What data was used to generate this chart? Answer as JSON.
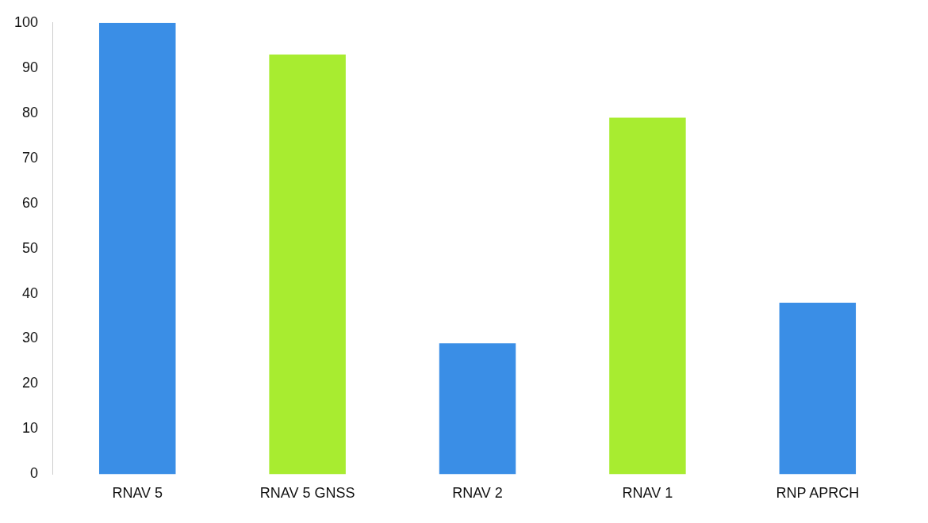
{
  "chart_data": {
    "type": "bar",
    "categories": [
      "RNAV 5",
      "RNAV 5 GNSS",
      "RNAV 2",
      "RNAV 1",
      "RNP APRCH"
    ],
    "values": [
      100,
      93,
      29,
      79,
      38
    ],
    "colors": [
      "#3a8ee6",
      "#a8ec30",
      "#3a8ee6",
      "#a8ec30",
      "#3a8ee6"
    ],
    "ylim": [
      0,
      100
    ],
    "yticks": [
      0,
      10,
      20,
      30,
      40,
      50,
      60,
      70,
      80,
      90,
      100
    ],
    "grid": false
  }
}
